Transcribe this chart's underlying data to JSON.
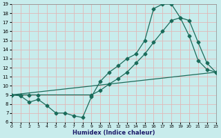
{
  "xlabel": "Humidex (Indice chaleur)",
  "bg_color": "#c8ecec",
  "line_color": "#1a6b5a",
  "grid_color_major": "#e8c8c8",
  "xlim": [
    0,
    23
  ],
  "ylim": [
    6,
    19
  ],
  "line1_x": [
    0,
    1,
    2,
    3,
    4,
    5,
    6,
    7,
    8,
    9,
    10,
    11,
    12,
    13,
    14,
    15,
    16,
    17,
    18,
    19,
    20,
    21,
    22,
    23
  ],
  "line1_y": [
    9.0,
    8.9,
    8.2,
    8.5,
    7.8,
    7.0,
    7.0,
    6.7,
    6.5,
    8.8,
    10.5,
    11.5,
    12.2,
    13.0,
    13.5,
    15.0,
    18.5,
    19.0,
    19.0,
    17.5,
    15.5,
    12.8,
    11.8,
    11.5
  ],
  "line2_x": [
    0,
    1,
    2,
    3,
    9,
    10,
    11,
    12,
    13,
    14,
    15,
    16,
    17,
    18,
    19,
    20,
    21,
    22,
    23
  ],
  "line2_y": [
    9.0,
    9.0,
    9.0,
    9.0,
    9.0,
    9.5,
    10.2,
    10.8,
    11.5,
    12.5,
    13.5,
    14.8,
    16.0,
    17.2,
    17.5,
    17.2,
    14.8,
    12.5,
    11.5
  ],
  "line3_x": [
    0,
    23
  ],
  "line3_y": [
    9.0,
    11.5
  ]
}
